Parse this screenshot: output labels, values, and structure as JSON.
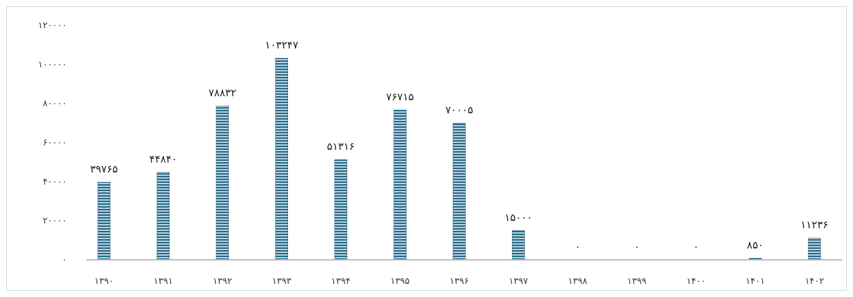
{
  "chart_data": {
    "type": "bar",
    "categories": [
      "۱۳۹۰",
      "۱۳۹۱",
      "۱۳۹۲",
      "۱۳۹۳",
      "۱۳۹۴",
      "۱۳۹۵",
      "۱۳۹۶",
      "۱۳۹۷",
      "۱۳۹۸",
      "۱۳۹۹",
      "۱۴۰۰",
      "۱۴۰۱",
      "۱۴۰۲"
    ],
    "values": [
      39765,
      44840,
      78832,
      103247,
      51316,
      76715,
      70005,
      15000,
      0,
      0,
      0,
      850,
      11236
    ],
    "value_labels": [
      "۳۹۷۶۵",
      "۴۴۸۴۰",
      "۷۸۸۳۲",
      "۱۰۳۲۴۷",
      "۵۱۳۱۶",
      "۷۶۷۱۵",
      "۷۰۰۰۵",
      "۱۵۰۰۰",
      "۰",
      "۰",
      "۰",
      "۸۵۰",
      "۱۱۲۳۶"
    ],
    "ylim": [
      0,
      120000
    ],
    "yticks": [
      0,
      20000,
      40000,
      60000,
      80000,
      100000,
      120000
    ],
    "ytick_labels": [
      "۰",
      "۲۰۰۰۰",
      "۴۰۰۰۰",
      "۶۰۰۰۰",
      "۸۰۰۰۰",
      "۱۰۰۰۰۰",
      "۱۲۰۰۰۰"
    ],
    "title": "",
    "xlabel": "",
    "ylabel": "",
    "grid": false,
    "legend": "none",
    "bar_color": "#2e6f8e",
    "stripe_color": "#ffffff"
  }
}
